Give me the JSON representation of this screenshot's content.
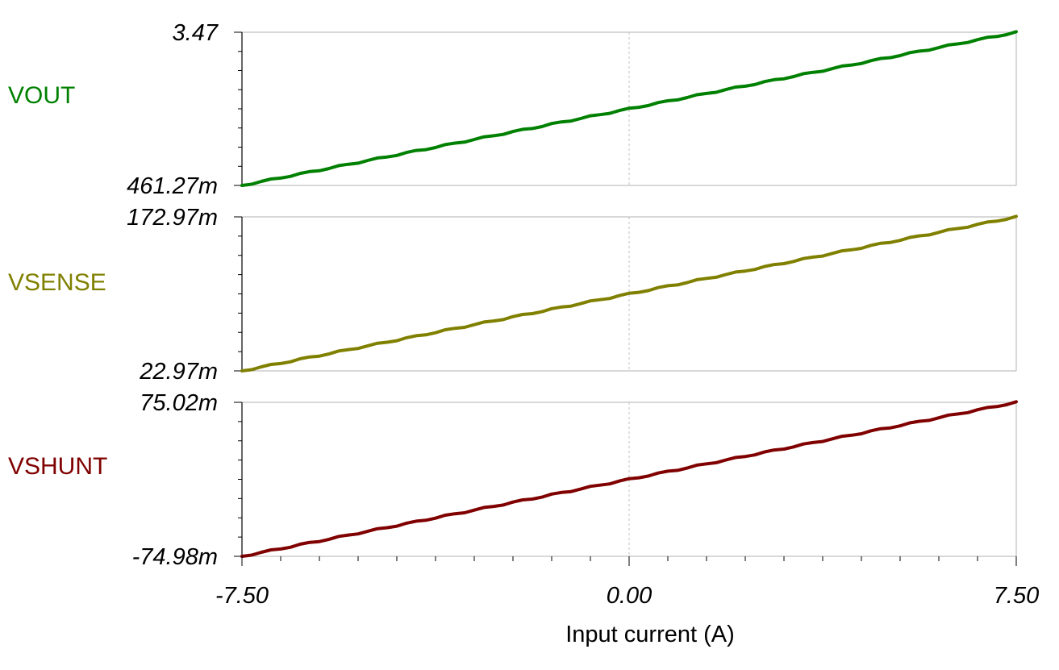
{
  "chart_data": {
    "type": "line",
    "xlabel": "Input current (A)",
    "xlim": [
      -7.5,
      7.5
    ],
    "x_tick_labels": [
      "-7.50",
      "0.00",
      "7.50"
    ],
    "grid": true,
    "series": [
      {
        "name": "VOUT",
        "color": "#008000",
        "ylim": [
          0.46127,
          3.47
        ],
        "y_tick_labels": {
          "top": "3.47",
          "bottom": "461.27m"
        },
        "x": [
          -7.5,
          7.5
        ],
        "y": [
          0.46127,
          3.47
        ]
      },
      {
        "name": "VSENSE",
        "color": "#808000",
        "ylim": [
          0.02297,
          0.17297
        ],
        "y_tick_labels": {
          "top": "172.97m",
          "bottom": "22.97m"
        },
        "x": [
          -7.5,
          7.5
        ],
        "y": [
          0.02297,
          0.17297
        ]
      },
      {
        "name": "VSHUNT",
        "color": "#800000",
        "ylim": [
          -0.07498,
          0.07502
        ],
        "y_tick_labels": {
          "top": "75.02m",
          "bottom": "-74.98m"
        },
        "x": [
          -7.5,
          7.5
        ],
        "y": [
          -0.07498,
          0.07502
        ]
      }
    ]
  }
}
